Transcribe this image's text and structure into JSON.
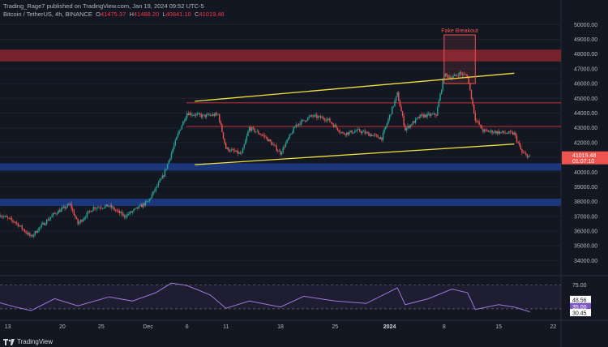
{
  "header": {
    "publisher_line": "Trading_Rage7 published on TradingView.com, Jan 19, 2024 09:52 UTC-5",
    "symbol": "Bitcoin / TetherUS, 4h, BINANCE",
    "ohlc": [
      {
        "label": "O",
        "value": "41475.37"
      },
      {
        "label": "H",
        "value": "41488.20"
      },
      {
        "label": "L",
        "value": "40841.10"
      },
      {
        "label": "C",
        "value": "41019.48"
      }
    ]
  },
  "branding": {
    "name": "TradingView"
  },
  "colors": {
    "background": "#131722",
    "up": "#26a69a",
    "down": "#ef5350",
    "channel": "#f0e040",
    "resistance_zone": "#8b2530",
    "support_zone": "#1e3c8c",
    "rsi": "#9c7ad8",
    "price_label": "#ef5350"
  },
  "chart_data": [
    {
      "type": "candlestick",
      "title": "Bitcoin / TetherUS, 4h, BINANCE",
      "y_axis": {
        "ticks": [
          "50000.00",
          "49000.00",
          "48000.00",
          "47000.00",
          "46000.00",
          "45000.00",
          "44000.00",
          "43000.00",
          "42000.00",
          "41000.00",
          "40000.00",
          "39000.00",
          "38000.00",
          "37000.00",
          "36000.00",
          "35000.00",
          "34000.00"
        ],
        "range": [
          33200,
          50400
        ]
      },
      "x_axis": {
        "ticks": [
          "13",
          "20",
          "25",
          "Dec",
          "6",
          "11",
          "18",
          "25",
          "2024",
          "8",
          "15",
          "22"
        ],
        "range_days": [
          "2023-11-12",
          "2024-01-23"
        ]
      },
      "approx_close_path": [
        {
          "x": "2023-11-12",
          "y": 37100
        },
        {
          "x": "2023-11-14",
          "y": 36600
        },
        {
          "x": "2023-11-16",
          "y": 35600
        },
        {
          "x": "2023-11-17",
          "y": 36200
        },
        {
          "x": "2023-11-19",
          "y": 37200
        },
        {
          "x": "2023-11-21",
          "y": 37800
        },
        {
          "x": "2023-11-22",
          "y": 36500
        },
        {
          "x": "2023-11-24",
          "y": 37600
        },
        {
          "x": "2023-11-26",
          "y": 37700
        },
        {
          "x": "2023-11-28",
          "y": 37000
        },
        {
          "x": "2023-12-01",
          "y": 38000
        },
        {
          "x": "2023-12-03",
          "y": 39800
        },
        {
          "x": "2023-12-05",
          "y": 42800
        },
        {
          "x": "2023-12-06",
          "y": 44000
        },
        {
          "x": "2023-12-08",
          "y": 43800
        },
        {
          "x": "2023-12-10",
          "y": 43900
        },
        {
          "x": "2023-12-11",
          "y": 41600
        },
        {
          "x": "2023-12-13",
          "y": 41200
        },
        {
          "x": "2023-12-14",
          "y": 43000
        },
        {
          "x": "2023-12-16",
          "y": 42400
        },
        {
          "x": "2023-12-18",
          "y": 41300
        },
        {
          "x": "2023-12-20",
          "y": 43200
        },
        {
          "x": "2023-12-22",
          "y": 43800
        },
        {
          "x": "2023-12-24",
          "y": 43600
        },
        {
          "x": "2023-12-26",
          "y": 42600
        },
        {
          "x": "2023-12-28",
          "y": 42800
        },
        {
          "x": "2023-12-31",
          "y": 42300
        },
        {
          "x": "2024-01-02",
          "y": 45300
        },
        {
          "x": "2024-01-03",
          "y": 42900
        },
        {
          "x": "2024-01-05",
          "y": 43800
        },
        {
          "x": "2024-01-07",
          "y": 43900
        },
        {
          "x": "2024-01-08",
          "y": 46600
        },
        {
          "x": "2024-01-09",
          "y": 46400
        },
        {
          "x": "2024-01-10",
          "y": 46700
        },
        {
          "x": "2024-01-11",
          "y": 46500
        },
        {
          "x": "2024-01-12",
          "y": 43600
        },
        {
          "x": "2024-01-13",
          "y": 42800
        },
        {
          "x": "2024-01-15",
          "y": 42700
        },
        {
          "x": "2024-01-17",
          "y": 42600
        },
        {
          "x": "2024-01-18",
          "y": 41300
        },
        {
          "x": "2024-01-19",
          "y": 41019
        }
      ],
      "zones": [
        {
          "kind": "resistance",
          "from": 47500,
          "to": 48300
        },
        {
          "kind": "support",
          "from": 40100,
          "to": 40600
        },
        {
          "kind": "support",
          "from": 37700,
          "to": 38200
        }
      ],
      "levels": [
        44700,
        43100
      ],
      "channel": {
        "upper": [
          {
            "x": "2023-12-07",
            "y": 44800
          },
          {
            "x": "2024-01-17",
            "y": 46700
          }
        ],
        "lower": [
          {
            "x": "2023-12-07",
            "y": 40500
          },
          {
            "x": "2024-01-17",
            "y": 41900
          }
        ]
      },
      "annotation": {
        "text": "Fake Breakout",
        "x_range": [
          "2024-01-08",
          "2024-01-12"
        ],
        "y_range": [
          46000,
          49300
        ]
      },
      "price_label": {
        "value": "41019.48",
        "countdown": "01:07:10"
      }
    },
    {
      "type": "line",
      "title": "RSI",
      "y_ticks": [
        "75.00",
        "48.56",
        "35.00",
        "30.45"
      ],
      "levels": [
        75,
        35
      ],
      "current_value": "30.45",
      "secondary_value": "48.56",
      "y_range": [
        20,
        85
      ],
      "approx_path": [
        {
          "x": "2023-11-12",
          "y": 45
        },
        {
          "x": "2023-11-14",
          "y": 38
        },
        {
          "x": "2023-11-16",
          "y": 32
        },
        {
          "x": "2023-11-19",
          "y": 52
        },
        {
          "x": "2023-11-22",
          "y": 40
        },
        {
          "x": "2023-11-26",
          "y": 55
        },
        {
          "x": "2023-11-29",
          "y": 48
        },
        {
          "x": "2023-12-02",
          "y": 62
        },
        {
          "x": "2023-12-04",
          "y": 78
        },
        {
          "x": "2023-12-06",
          "y": 74
        },
        {
          "x": "2023-12-09",
          "y": 58
        },
        {
          "x": "2023-12-11",
          "y": 36
        },
        {
          "x": "2023-12-14",
          "y": 48
        },
        {
          "x": "2023-12-18",
          "y": 38
        },
        {
          "x": "2023-12-21",
          "y": 56
        },
        {
          "x": "2023-12-25",
          "y": 48
        },
        {
          "x": "2023-12-29",
          "y": 44
        },
        {
          "x": "2024-01-02",
          "y": 70
        },
        {
          "x": "2024-01-03",
          "y": 42
        },
        {
          "x": "2024-01-06",
          "y": 52
        },
        {
          "x": "2024-01-09",
          "y": 68
        },
        {
          "x": "2024-01-11",
          "y": 62
        },
        {
          "x": "2024-01-12",
          "y": 34
        },
        {
          "x": "2024-01-15",
          "y": 42
        },
        {
          "x": "2024-01-17",
          "y": 38
        },
        {
          "x": "2024-01-19",
          "y": 30
        }
      ],
      "x_axis": {
        "range_days": [
          "2023-11-12",
          "2024-01-23"
        ]
      }
    }
  ]
}
